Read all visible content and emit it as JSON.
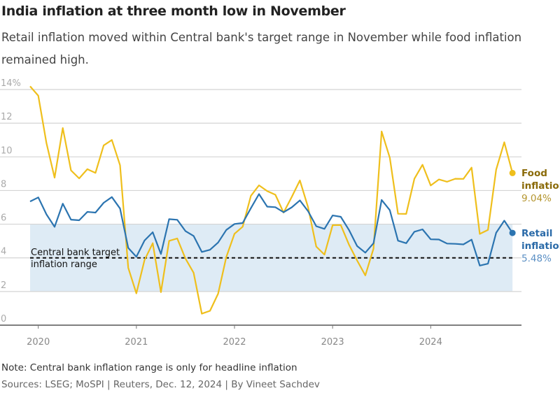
{
  "title": "India inflation at three month low in November",
  "subtitle": "Retail inflation moved within Central bank's target range in November while food inflation remained high.",
  "note": "Note: Central bank inflation range is only for headline inflation",
  "sources": "Sources: LSEG; MoSPI | Reuters, Dec. 12, 2024 | By Vineet Sachdev",
  "chart_data": {
    "type": "line",
    "x_start": "2019-12",
    "x_end": "2024-11",
    "frequency": "monthly",
    "x_tick_labels": [
      "2020",
      "2021",
      "2022",
      "2023",
      "2024"
    ],
    "y_tick_labels": [
      "0",
      "2",
      "4",
      "6",
      "8",
      "10",
      "12",
      "14%"
    ],
    "ylim": [
      0,
      14
    ],
    "grid": true,
    "target_band": {
      "low": 2,
      "high": 6,
      "midline": 4,
      "label_line1": "Central bank target",
      "label_line2": "inflation range",
      "color": "#deebf5"
    },
    "series": [
      {
        "name_line1": "Food",
        "name_line2": "inflation",
        "last_label": "9.04%",
        "color": "#efbf1c",
        "label_color": "#8a6a08",
        "value_color": "#b4952e",
        "values": [
          14.19,
          13.63,
          10.81,
          8.76,
          11.71,
          9.2,
          8.72,
          9.27,
          9.05,
          10.68,
          11.0,
          9.5,
          3.41,
          1.89,
          3.87,
          4.87,
          1.96,
          5.01,
          5.15,
          3.96,
          3.11,
          0.68,
          0.85,
          1.87,
          4.05,
          5.43,
          5.85,
          7.68,
          8.31,
          7.97,
          7.75,
          6.69,
          7.62,
          8.6,
          7.01,
          4.67,
          4.19,
          5.94,
          5.95,
          4.79,
          3.84,
          2.96,
          4.55,
          11.51,
          9.94,
          6.62,
          6.61,
          8.7,
          9.53,
          8.3,
          8.66,
          8.52,
          8.7,
          8.69,
          9.36,
          5.42,
          5.66,
          9.24,
          10.87,
          9.04
        ]
      },
      {
        "name_line1": "Retail",
        "name_line2": "inflation",
        "last_label": "5.48%",
        "color": "#2b74b0",
        "label_color": "#2a6aa8",
        "value_color": "#5b8fc4",
        "values": [
          7.35,
          7.59,
          6.58,
          5.84,
          7.22,
          6.27,
          6.23,
          6.73,
          6.69,
          7.27,
          7.61,
          6.93,
          4.59,
          4.06,
          5.03,
          5.52,
          4.23,
          6.3,
          6.26,
          5.59,
          5.3,
          4.35,
          4.48,
          4.91,
          5.66,
          6.01,
          6.07,
          6.95,
          7.79,
          7.04,
          7.01,
          6.71,
          7.0,
          7.41,
          6.77,
          5.88,
          5.72,
          6.52,
          6.44,
          5.66,
          4.7,
          4.31,
          4.87,
          7.44,
          6.83,
          5.02,
          4.87,
          5.55,
          5.69,
          5.1,
          5.09,
          4.85,
          4.83,
          4.8,
          5.08,
          3.54,
          3.65,
          5.49,
          6.21,
          5.48
        ]
      }
    ]
  }
}
